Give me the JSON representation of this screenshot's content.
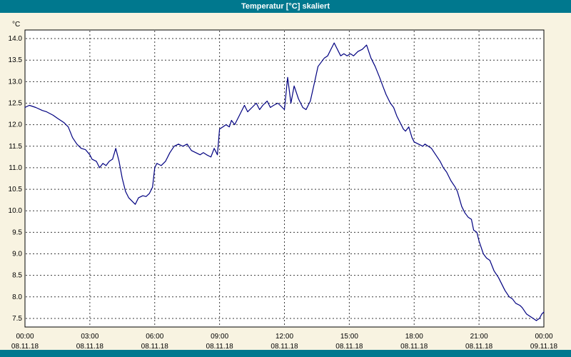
{
  "window": {
    "title": "Temperatur [°C] skaliert"
  },
  "colors": {
    "titlebar": "#00788e",
    "window_background": "#f8f3e1",
    "plot_background": "#ffffff",
    "plot_border": "#000000",
    "grid": "#3a3a3a",
    "line": "#000080",
    "text": "#000000"
  },
  "chart_data": {
    "type": "line",
    "title": "Temperatur [°C] skaliert",
    "y_axis_label": "°C",
    "ylim": [
      7.3,
      14.2
    ],
    "xlim": [
      0,
      24
    ],
    "grid": "dashed",
    "legend_position": "none",
    "y_ticks": [
      14.0,
      13.5,
      13.0,
      12.5,
      12.0,
      11.5,
      11.0,
      10.5,
      10.0,
      9.5,
      9.0,
      8.5,
      8.0,
      7.5
    ],
    "x_ticks": [
      {
        "hour": 0,
        "time": "00:00",
        "date": "08.11.18"
      },
      {
        "hour": 3,
        "time": "03:00",
        "date": "08.11.18"
      },
      {
        "hour": 6,
        "time": "06:00",
        "date": "08.11.18"
      },
      {
        "hour": 9,
        "time": "09:00",
        "date": "08.11.18"
      },
      {
        "hour": 12,
        "time": "12:00",
        "date": "08.11.18"
      },
      {
        "hour": 15,
        "time": "15:00",
        "date": "08.11.18"
      },
      {
        "hour": 18,
        "time": "18:00",
        "date": "08.11.18"
      },
      {
        "hour": 21,
        "time": "21:00",
        "date": "08.11.18"
      },
      {
        "hour": 24,
        "time": "00:00",
        "date": "09.11.18"
      }
    ],
    "series": [
      {
        "name": "Temperatur",
        "color": "#000080",
        "points": [
          [
            0,
            12.4
          ],
          [
            0.2,
            12.45
          ],
          [
            0.5,
            12.4
          ],
          [
            0.8,
            12.33
          ],
          [
            1,
            12.3
          ],
          [
            1.3,
            12.22
          ],
          [
            1.5,
            12.15
          ],
          [
            1.8,
            12.05
          ],
          [
            2,
            11.95
          ],
          [
            2.2,
            11.7
          ],
          [
            2.4,
            11.55
          ],
          [
            2.6,
            11.45
          ],
          [
            2.8,
            11.42
          ],
          [
            3,
            11.3
          ],
          [
            3.1,
            11.2
          ],
          [
            3.3,
            11.15
          ],
          [
            3.45,
            11.0
          ],
          [
            3.6,
            11.1
          ],
          [
            3.75,
            11.05
          ],
          [
            3.9,
            11.15
          ],
          [
            4.05,
            11.2
          ],
          [
            4.2,
            11.45
          ],
          [
            4.35,
            11.15
          ],
          [
            4.5,
            10.75
          ],
          [
            4.65,
            10.45
          ],
          [
            4.8,
            10.3
          ],
          [
            5,
            10.2
          ],
          [
            5.1,
            10.15
          ],
          [
            5.25,
            10.3
          ],
          [
            5.45,
            10.35
          ],
          [
            5.6,
            10.33
          ],
          [
            5.75,
            10.4
          ],
          [
            5.9,
            10.55
          ],
          [
            6,
            11.0
          ],
          [
            6.1,
            11.1
          ],
          [
            6.3,
            11.05
          ],
          [
            6.5,
            11.15
          ],
          [
            6.7,
            11.35
          ],
          [
            6.9,
            11.5
          ],
          [
            7.1,
            11.55
          ],
          [
            7.3,
            11.5
          ],
          [
            7.5,
            11.55
          ],
          [
            7.7,
            11.4
          ],
          [
            7.9,
            11.35
          ],
          [
            8.1,
            11.3
          ],
          [
            8.25,
            11.35
          ],
          [
            8.4,
            11.3
          ],
          [
            8.6,
            11.25
          ],
          [
            8.75,
            11.45
          ],
          [
            8.9,
            11.3
          ],
          [
            9,
            11.9
          ],
          [
            9.15,
            11.95
          ],
          [
            9.3,
            12.0
          ],
          [
            9.45,
            11.95
          ],
          [
            9.55,
            12.1
          ],
          [
            9.7,
            12.0
          ],
          [
            9.9,
            12.2
          ],
          [
            10,
            12.3
          ],
          [
            10.15,
            12.45
          ],
          [
            10.3,
            12.3
          ],
          [
            10.5,
            12.4
          ],
          [
            10.7,
            12.5
          ],
          [
            10.85,
            12.35
          ],
          [
            11,
            12.45
          ],
          [
            11.2,
            12.55
          ],
          [
            11.35,
            12.4
          ],
          [
            11.5,
            12.45
          ],
          [
            11.7,
            12.5
          ],
          [
            11.9,
            12.4
          ],
          [
            12,
            12.35
          ],
          [
            12.15,
            13.1
          ],
          [
            12.3,
            12.5
          ],
          [
            12.45,
            12.9
          ],
          [
            12.65,
            12.6
          ],
          [
            12.85,
            12.4
          ],
          [
            13,
            12.35
          ],
          [
            13.2,
            12.55
          ],
          [
            13.4,
            13.0
          ],
          [
            13.55,
            13.35
          ],
          [
            13.7,
            13.45
          ],
          [
            13.85,
            13.55
          ],
          [
            14,
            13.6
          ],
          [
            14.15,
            13.75
          ],
          [
            14.3,
            13.9
          ],
          [
            14.45,
            13.75
          ],
          [
            14.6,
            13.6
          ],
          [
            14.75,
            13.65
          ],
          [
            14.9,
            13.6
          ],
          [
            15.05,
            13.65
          ],
          [
            15.2,
            13.6
          ],
          [
            15.4,
            13.7
          ],
          [
            15.6,
            13.75
          ],
          [
            15.8,
            13.85
          ],
          [
            15.9,
            13.7
          ],
          [
            16,
            13.55
          ],
          [
            16.2,
            13.35
          ],
          [
            16.4,
            13.1
          ],
          [
            16.55,
            12.9
          ],
          [
            16.7,
            12.7
          ],
          [
            16.9,
            12.5
          ],
          [
            17.05,
            12.4
          ],
          [
            17.2,
            12.2
          ],
          [
            17.4,
            12.0
          ],
          [
            17.5,
            11.9
          ],
          [
            17.6,
            11.85
          ],
          [
            17.75,
            11.95
          ],
          [
            17.9,
            11.7
          ],
          [
            18,
            11.6
          ],
          [
            18.2,
            11.55
          ],
          [
            18.4,
            11.5
          ],
          [
            18.5,
            11.55
          ],
          [
            18.65,
            11.5
          ],
          [
            18.8,
            11.45
          ],
          [
            19,
            11.3
          ],
          [
            19.2,
            11.15
          ],
          [
            19.35,
            11.0
          ],
          [
            19.5,
            10.9
          ],
          [
            19.7,
            10.7
          ],
          [
            19.9,
            10.55
          ],
          [
            20,
            10.45
          ],
          [
            20.2,
            10.1
          ],
          [
            20.35,
            9.95
          ],
          [
            20.5,
            9.85
          ],
          [
            20.65,
            9.8
          ],
          [
            20.75,
            9.55
          ],
          [
            20.9,
            9.5
          ],
          [
            21,
            9.3
          ],
          [
            21.2,
            9.0
          ],
          [
            21.35,
            8.9
          ],
          [
            21.5,
            8.85
          ],
          [
            21.7,
            8.6
          ],
          [
            21.9,
            8.45
          ],
          [
            22,
            8.35
          ],
          [
            22.2,
            8.15
          ],
          [
            22.4,
            8.0
          ],
          [
            22.55,
            7.95
          ],
          [
            22.7,
            7.85
          ],
          [
            22.9,
            7.8
          ],
          [
            23,
            7.75
          ],
          [
            23.2,
            7.6
          ],
          [
            23.35,
            7.55
          ],
          [
            23.5,
            7.5
          ],
          [
            23.65,
            7.45
          ],
          [
            23.8,
            7.5
          ],
          [
            23.9,
            7.6
          ],
          [
            24,
            7.65
          ]
        ]
      }
    ]
  }
}
